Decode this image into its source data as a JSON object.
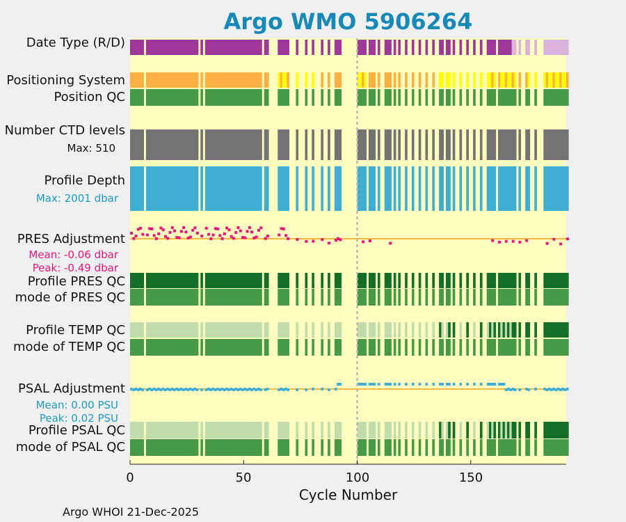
{
  "title": "Argo WMO 5906264",
  "colors": {
    "title": "#1689b8",
    "background": "#ffffc0",
    "purple": "#a0389a",
    "lavender": "#dcb1da",
    "orange": "#fdb042",
    "yellow": "#ffff00",
    "green": "#469a46",
    "darkgreen": "#146e28",
    "lightgreen": "#c0dcab",
    "gray": "#737373",
    "blue": "#40aed2",
    "magenta": "#e8157c",
    "cyan_text": "#1c9ac4",
    "reference_line": "#f4b942",
    "marker_line": "#b4b4b4"
  },
  "rows": [
    {
      "label": "Date Type (R/D)"
    },
    {
      "label": "Positioning System"
    },
    {
      "label": "Position QC"
    },
    {
      "label": "Number CTD levels",
      "sublabel": "Max: 510"
    },
    {
      "label": "Profile Depth",
      "sublabel": "Max: 2001 dbar"
    },
    {
      "label": "PRES Adjustment",
      "sublabel": "Mean: -0.06 dbar",
      "sublabel2": "Peak: -0.49 dbar"
    },
    {
      "label": "Profile PRES QC"
    },
    {
      "label": "mode of PRES QC"
    },
    {
      "label": "Profile TEMP QC"
    },
    {
      "label": "mode of TEMP QC"
    },
    {
      "label": "PSAL Adjustment",
      "sublabel": "Mean: 0.00 PSU",
      "sublabel2": "Peak: 0.02 PSU"
    },
    {
      "label": "Profile PSAL QC"
    },
    {
      "label": "mode of PSAL QC"
    }
  ],
  "footer": "Argo WHOI 21-Dec-2025",
  "chart_data": {
    "type": "heatmap",
    "title": "Argo WMO 5906264",
    "xlabel": "Cycle Number",
    "xlim": [
      0,
      192
    ],
    "xticks": [
      "0",
      "50",
      "100",
      "150"
    ],
    "vertical_marker_cycle": 100,
    "present_cycle_ranges": [
      [
        0,
        5
      ],
      [
        7,
        29
      ],
      [
        31,
        31
      ],
      [
        33,
        57
      ],
      [
        59,
        60
      ],
      [
        65,
        69
      ],
      [
        73,
        73
      ],
      [
        77,
        77
      ],
      [
        80,
        80
      ],
      [
        84,
        84
      ],
      [
        87,
        87
      ],
      [
        90,
        92
      ],
      [
        100,
        103
      ],
      [
        105,
        107
      ],
      [
        109,
        109
      ],
      [
        112,
        114
      ],
      [
        116,
        116
      ],
      [
        118,
        118
      ],
      [
        121,
        121
      ],
      [
        124,
        124
      ],
      [
        127,
        127
      ],
      [
        130,
        130
      ],
      [
        133,
        133
      ],
      [
        136,
        137
      ],
      [
        139,
        140
      ],
      [
        142,
        142
      ],
      [
        145,
        145
      ],
      [
        148,
        148
      ],
      [
        151,
        151
      ],
      [
        154,
        154
      ],
      [
        157,
        160
      ],
      [
        162,
        169
      ],
      [
        171,
        171
      ],
      [
        174,
        175
      ],
      [
        178,
        178
      ],
      [
        182,
        183
      ],
      [
        184,
        192
      ]
    ],
    "delayed_mode_cycles_start": 168,
    "max_ctd_levels": 510,
    "max_profile_depth_dbar": 2001,
    "pres_adjustment": {
      "mean": -0.06,
      "peak": -0.49,
      "unit": "dbar"
    },
    "psal_adjustment": {
      "mean": 0.0,
      "peak": 0.02,
      "unit": "PSU"
    },
    "temp_psal_qc_darkgreen_from_cycle": 136
  }
}
